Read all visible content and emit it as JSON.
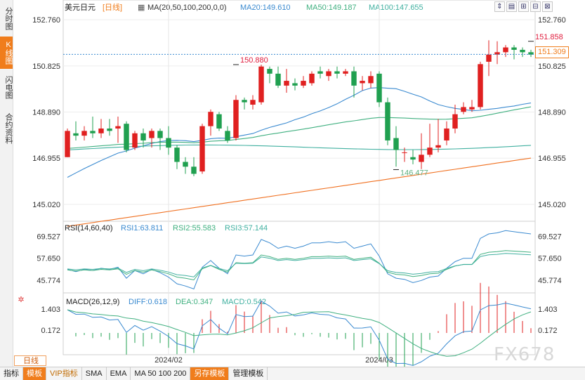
{
  "tabs": [
    {
      "label": "分时图",
      "active": false
    },
    {
      "label": "K线图",
      "active": true
    },
    {
      "label": "闪电图",
      "active": false
    },
    {
      "label": "合约资料",
      "active": false
    }
  ],
  "header": {
    "symbol": "美元日元",
    "period": "[日线]",
    "ma_label": "MA(20,50,100,200,0,0)",
    "ma20": "MA20:149.610",
    "ma50": "MA50:149.187",
    "ma100": "MA100:147.655"
  },
  "toolbar": [
    "⇕",
    "▤",
    "⊞",
    "⊟",
    "⊠"
  ],
  "period_button": "日线",
  "bottom_bar": [
    "指标",
    "模板",
    "VIP指标",
    "SMA",
    "EMA",
    "MA 50 100 200",
    "另存模板",
    "管理模板"
  ],
  "watermark": "FX678",
  "current_price": "151.309",
  "colors": {
    "up": "#e02020",
    "down": "#20a050",
    "ma20": "#3a8ad0",
    "ma50": "#40b080",
    "ma100": "#40b0a0",
    "ma200": "#f07020",
    "accent": "#f07d1c"
  },
  "chart_data": [
    {
      "type": "candlestick",
      "title": "",
      "yticks": [
        "152.760",
        "150.825",
        "148.890",
        "146.955",
        "145.020"
      ],
      "ylim": [
        144.4,
        153.0
      ],
      "xticks": [
        {
          "label": "2024/02",
          "index": 12
        },
        {
          "label": "2024/03",
          "index": 37
        }
      ],
      "annotations": [
        {
          "text": "151.858",
          "index": 55,
          "value": 151.858
        },
        {
          "text": "150.880",
          "index": 20,
          "value": 150.88
        },
        {
          "text": "146.477",
          "index": 39,
          "value": 146.477
        }
      ],
      "candles": [
        [
          147.0,
          148.1,
          147.0,
          148.2
        ],
        [
          148.0,
          147.9,
          147.7,
          148.5
        ],
        [
          147.9,
          148.1,
          147.7,
          148.3
        ],
        [
          148.1,
          148.0,
          147.8,
          148.7
        ],
        [
          148.0,
          148.2,
          147.8,
          148.6
        ],
        [
          148.2,
          148.1,
          147.9,
          148.6
        ],
        [
          148.2,
          148.3,
          147.6,
          148.7
        ],
        [
          148.4,
          147.3,
          147.2,
          148.5
        ],
        [
          147.4,
          148.0,
          147.3,
          148.1
        ],
        [
          148.0,
          147.7,
          147.4,
          148.2
        ],
        [
          147.8,
          148.1,
          147.4,
          148.2
        ],
        [
          148.1,
          147.8,
          147.3,
          148.2
        ],
        [
          147.8,
          147.4,
          147.1,
          148.3
        ],
        [
          147.4,
          146.8,
          146.5,
          147.5
        ],
        [
          146.8,
          146.6,
          146.3,
          147.0
        ],
        [
          146.6,
          146.3,
          146.2,
          147.0
        ],
        [
          146.4,
          148.3,
          146.3,
          148.4
        ],
        [
          148.3,
          148.9,
          147.9,
          149.0
        ],
        [
          148.8,
          148.2,
          148.1,
          148.9
        ],
        [
          148.1,
          147.7,
          147.6,
          148.3
        ],
        [
          147.8,
          149.4,
          147.7,
          149.6
        ],
        [
          149.4,
          149.3,
          149.0,
          149.5
        ],
        [
          149.2,
          149.4,
          149.0,
          149.6
        ],
        [
          149.3,
          150.8,
          149.2,
          150.88
        ],
        [
          150.7,
          150.5,
          150.1,
          150.8
        ],
        [
          150.5,
          150.0,
          149.9,
          150.8
        ],
        [
          150.0,
          150.2,
          149.7,
          150.7
        ],
        [
          150.1,
          150.0,
          149.8,
          150.3
        ],
        [
          150.0,
          150.2,
          149.9,
          150.4
        ],
        [
          150.1,
          150.5,
          150.0,
          150.6
        ],
        [
          150.6,
          150.5,
          150.3,
          150.8
        ],
        [
          150.4,
          150.6,
          150.2,
          150.7
        ],
        [
          150.6,
          150.5,
          150.3,
          150.8
        ],
        [
          150.5,
          150.6,
          150.4,
          150.7
        ],
        [
          150.6,
          150.0,
          149.5,
          150.8
        ],
        [
          150.1,
          150.2,
          149.8,
          150.4
        ],
        [
          150.1,
          150.4,
          149.9,
          150.6
        ],
        [
          150.5,
          149.3,
          149.1,
          150.6
        ],
        [
          149.3,
          147.7,
          147.5,
          149.5
        ],
        [
          147.8,
          147.3,
          146.6,
          148.3
        ],
        [
          147.2,
          147.2,
          146.8,
          147.4
        ],
        [
          147.0,
          146.9,
          146.7,
          147.3
        ],
        [
          146.8,
          147.1,
          146.5,
          148.0
        ],
        [
          147.1,
          147.4,
          147.0,
          148.4
        ],
        [
          147.4,
          147.5,
          147.2,
          148.6
        ],
        [
          147.7,
          148.2,
          147.5,
          148.5
        ],
        [
          148.2,
          148.8,
          148.0,
          149.2
        ],
        [
          148.9,
          149.1,
          148.8,
          149.3
        ],
        [
          149.0,
          149.1,
          148.9,
          149.4
        ],
        [
          149.1,
          150.9,
          149.0,
          151.0
        ],
        [
          151.0,
          151.3,
          150.4,
          151.9
        ],
        [
          151.3,
          151.4,
          150.9,
          151.858
        ],
        [
          151.4,
          151.6,
          151.2,
          151.7
        ],
        [
          151.6,
          151.5,
          151.1,
          151.7
        ],
        [
          151.5,
          151.4,
          151.2,
          151.6
        ],
        [
          151.4,
          151.3,
          151.2,
          151.5
        ]
      ]
    },
    {
      "type": "line",
      "title": "RSI(14,60,40)",
      "series_labels": [
        "RSI1:63.811",
        "RSI2:55.583",
        "RSI3:57.144"
      ],
      "yticks": [
        "69.527",
        "57.650",
        "45.774"
      ],
      "ylim": [
        40,
        75
      ]
    },
    {
      "type": "bar",
      "title": "MACD(26,12,9)",
      "series_labels": [
        "DIFF:0.618",
        "DEA:0.347",
        "MACD:0.542"
      ],
      "yticks": [
        "1.403",
        "0.172"
      ],
      "ylim": [
        -1.2,
        1.9
      ]
    }
  ]
}
